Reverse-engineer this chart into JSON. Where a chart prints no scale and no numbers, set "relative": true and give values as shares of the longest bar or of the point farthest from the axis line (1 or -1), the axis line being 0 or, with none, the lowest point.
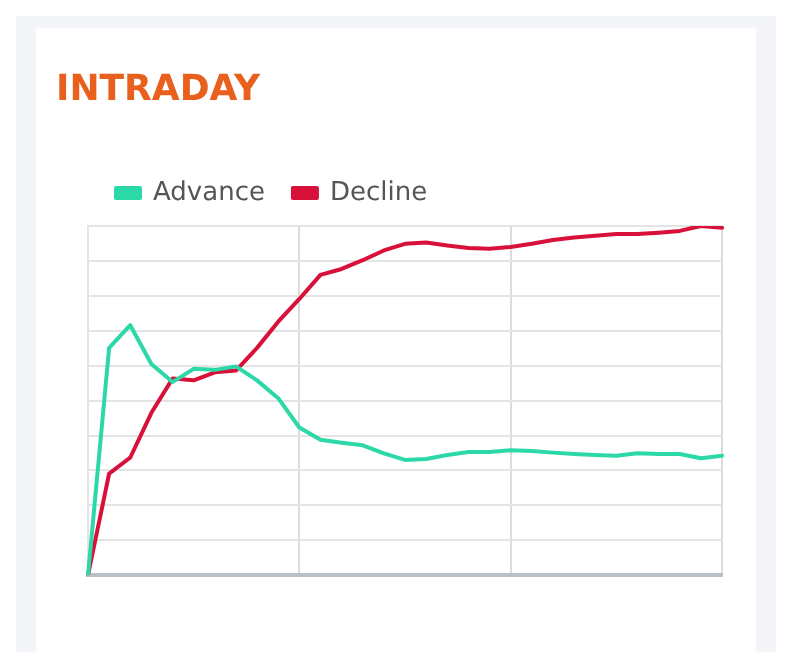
{
  "chart_data": {
    "type": "line",
    "title": "INTRADAY",
    "relative": true,
    "grid": true,
    "legend": "top left",
    "marker": "none",
    "line_style": "solid",
    "categories": [
      null,
      null,
      null,
      null,
      null,
      null,
      null,
      null,
      null,
      null,
      null,
      null,
      null,
      null,
      null,
      null,
      null,
      null,
      null,
      null,
      null,
      null,
      null,
      null,
      null,
      null,
      null,
      null,
      null,
      null,
      null
    ],
    "series": [
      {
        "name": "Advance",
        "color": "#2dd8a8",
        "values": [
          0,
          0.651,
          0.716,
          0.605,
          0.553,
          0.591,
          0.588,
          0.598,
          0.558,
          0.507,
          0.423,
          0.388,
          0.379,
          0.372,
          0.349,
          0.33,
          0.333,
          0.344,
          0.353,
          0.353,
          0.358,
          0.356,
          0.351,
          0.347,
          0.344,
          0.342,
          0.349,
          0.347,
          0.347,
          0.335,
          0.342
        ]
      },
      {
        "name": "Decline",
        "color": "#d8113a",
        "values": [
          0,
          0.291,
          0.337,
          0.465,
          0.563,
          0.558,
          0.581,
          0.586,
          0.651,
          0.726,
          0.791,
          0.86,
          0.877,
          0.902,
          0.93,
          0.949,
          0.953,
          0.944,
          0.937,
          0.935,
          0.94,
          0.949,
          0.96,
          0.967,
          0.972,
          0.977,
          0.977,
          0.981,
          0.986,
          1,
          0.995
        ]
      }
    ]
  }
}
